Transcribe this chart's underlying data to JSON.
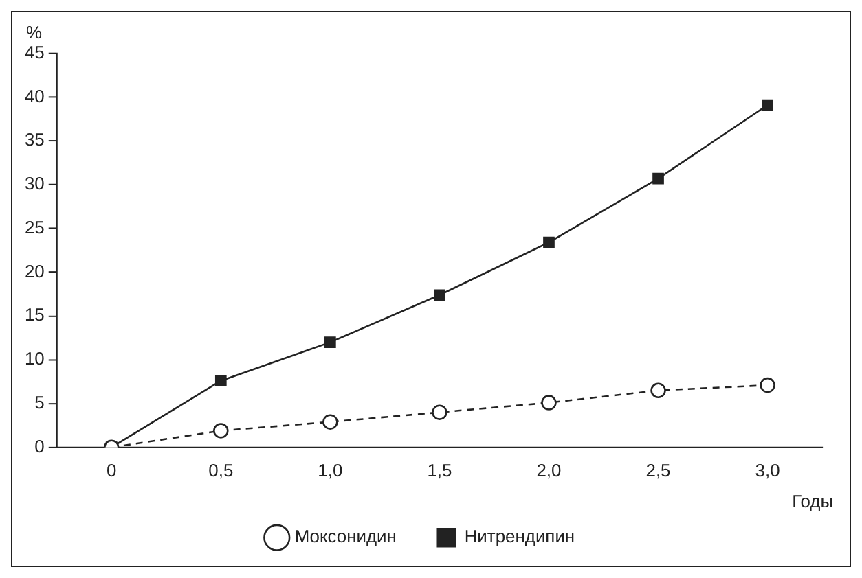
{
  "chart_data": {
    "type": "line",
    "categories": [
      "0",
      "0,5",
      "1,0",
      "1,5",
      "2,0",
      "2,5",
      "3,0"
    ],
    "xlabel": "Годы",
    "ylabel": "%",
    "ylim": [
      0,
      45
    ],
    "yticks": [
      0,
      5,
      10,
      15,
      20,
      25,
      30,
      35,
      40,
      45
    ],
    "grid": false,
    "legend": "bottom",
    "series": [
      {
        "name": "Моксонидин",
        "color": "#222222",
        "marker": "circle",
        "line_style": "dashed",
        "values": [
          0,
          1.9,
          2.9,
          4.0,
          5.1,
          6.5,
          7.1
        ]
      },
      {
        "name": "Нитрендипин",
        "color": "#222222",
        "marker": "square",
        "line_style": "solid",
        "values": [
          0,
          7.6,
          12.0,
          17.4,
          23.4,
          30.7,
          39.1
        ]
      }
    ]
  }
}
